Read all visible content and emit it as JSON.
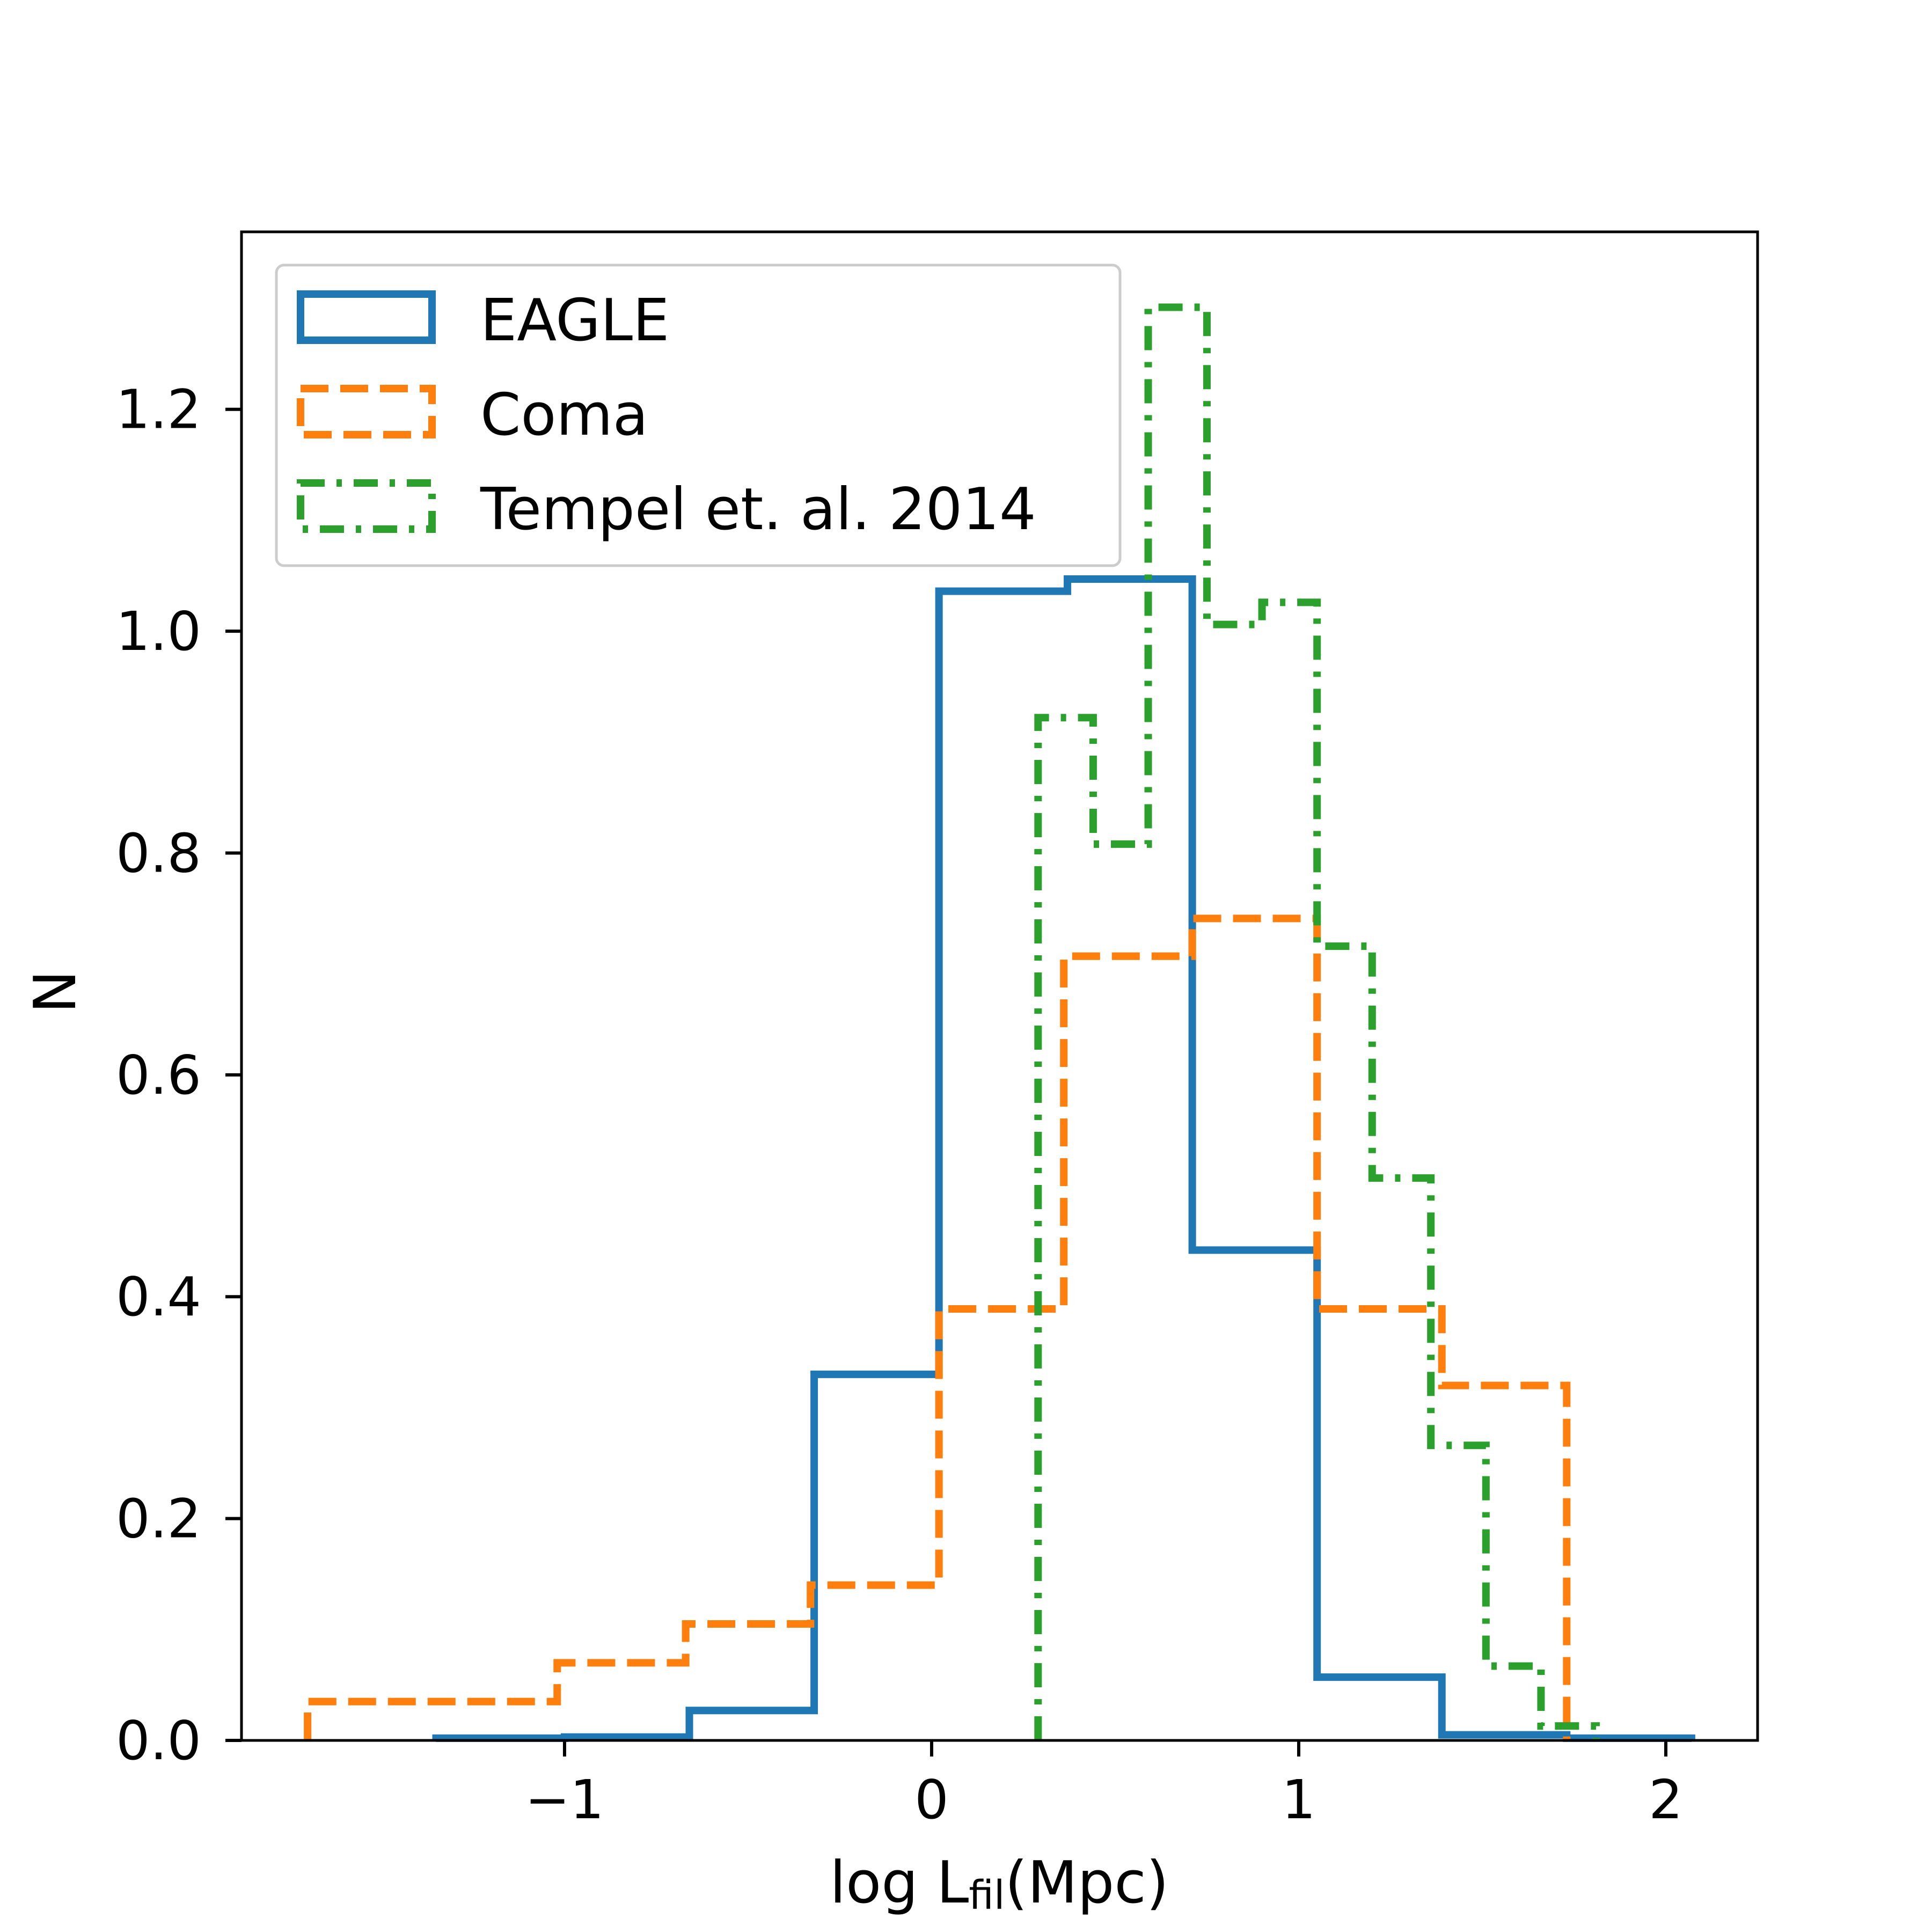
{
  "chart_data": {
    "type": "histogram",
    "xlabel": {
      "main": "log L",
      "sub": "fil",
      "suffix": "(Mpc)"
    },
    "ylabel": "N",
    "xlim": [
      -1.88,
      2.25
    ],
    "ylim": [
      0.0,
      1.36
    ],
    "xticks": [
      {
        "v": -1,
        "label": "−1"
      },
      {
        "v": 0,
        "label": "0"
      },
      {
        "v": 1,
        "label": "1"
      },
      {
        "v": 2,
        "label": "2"
      }
    ],
    "yticks": [
      {
        "v": 0.0,
        "label": "0.0"
      },
      {
        "v": 0.2,
        "label": "0.2"
      },
      {
        "v": 0.4,
        "label": "0.4"
      },
      {
        "v": 0.6,
        "label": "0.6"
      },
      {
        "v": 0.8,
        "label": "0.8"
      },
      {
        "v": 1.0,
        "label": "1.0"
      },
      {
        "v": 1.2,
        "label": "1.2"
      }
    ],
    "grid": false,
    "legend_position": "top-left",
    "series": [
      {
        "name": "EAGLE",
        "color": "#1f77b4",
        "style": "solid",
        "edges": [
          -1.35,
          -1.0,
          -0.66,
          -0.32,
          0.02,
          0.37,
          0.71,
          1.05,
          1.39,
          1.73,
          2.07
        ],
        "values": [
          0.002,
          0.003,
          0.027,
          0.33,
          1.036,
          1.047,
          0.442,
          0.057,
          0.005,
          0.002
        ]
      },
      {
        "name": "Coma",
        "color": "#ff7f0e",
        "style": "dashed",
        "edges": [
          -1.7,
          -1.36,
          -1.02,
          -0.67,
          -0.33,
          0.02,
          0.36,
          0.71,
          1.05,
          1.39,
          1.73
        ],
        "values": [
          0.035,
          0.035,
          0.07,
          0.105,
          0.14,
          0.389,
          0.707,
          0.741,
          0.389,
          0.32
        ]
      },
      {
        "name": "Tempel et. al. 2014",
        "color": "#2ca02c",
        "style": "dashdot",
        "edges": [
          0.29,
          0.44,
          0.59,
          0.75,
          0.9,
          1.05,
          1.2,
          1.36,
          1.51,
          1.66,
          1.81
        ],
        "values": [
          0.922,
          0.808,
          1.292,
          1.006,
          1.026,
          0.716,
          0.507,
          0.266,
          0.067,
          0.013
        ]
      }
    ]
  }
}
